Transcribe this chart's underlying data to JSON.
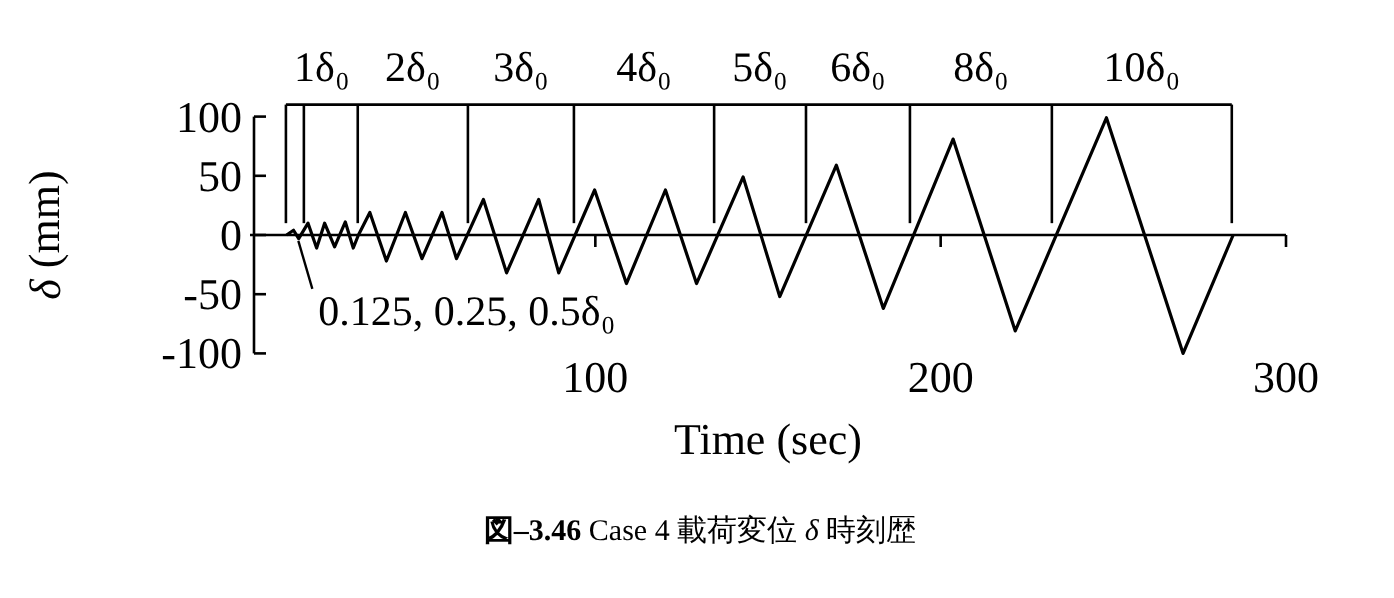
{
  "chart_data": {
    "type": "line",
    "title": "**図–3.46** Case 4 載荷変位 *δ* 時刻歴",
    "xlabel": "Time (sec)",
    "ylabel": "*δ* (mm)",
    "x": [
      10.6,
      12.6,
      14.1,
      16.8,
      19.3,
      21.6,
      24.5,
      27.6,
      29.9,
      31.4,
      34.7,
      39.5,
      45,
      49.8,
      55.6,
      59.8,
      67.6,
      74.3,
      83.6,
      89.4,
      99.8,
      109,
      120.3,
      129.3,
      142.8,
      153.4,
      169.8,
      183.4,
      203.6,
      221.6,
      248,
      270.2,
      284.7
    ],
    "values": [
      0,
      4,
      -3,
      10,
      -11,
      10,
      -10,
      11,
      -11,
      0,
      19,
      -22,
      19,
      -20,
      19,
      -20,
      30,
      -32,
      30,
      -32,
      38,
      -41,
      38,
      -41,
      49,
      -52,
      59,
      -62,
      81,
      -81,
      99,
      -100,
      0
    ],
    "color": "#000000",
    "xlim": [
      0,
      300
    ],
    "xticks": [
      100,
      200,
      300
    ],
    "ylim": [
      -100,
      100
    ],
    "yticks": [
      -100,
      -50,
      0,
      50,
      100
    ],
    "ref_lines": [
      {
        "axis": "x",
        "value": 10.4,
        "label": "1δ₀"
      },
      {
        "axis": "x",
        "value": 15.6
      },
      {
        "axis": "x",
        "value": 31.2,
        "label": "2δ₀"
      },
      {
        "axis": "x",
        "value": 63.1,
        "label": "3δ₀"
      },
      {
        "axis": "x",
        "value": 93.8,
        "label": "4δ₀"
      },
      {
        "axis": "x",
        "value": 134.4,
        "label": "5δ₀"
      },
      {
        "axis": "x",
        "value": 161,
        "label": "6δ₀"
      },
      {
        "axis": "x",
        "value": 191.1,
        "label": "8δ₀"
      },
      {
        "axis": "x",
        "value": 232.2,
        "label": "10δ₀"
      },
      {
        "axis": "x",
        "value": 284.3
      }
    ],
    "annotations": [
      {
        "text": "0.125, 0.25, 0.5δ₀",
        "x": 14,
        "y": -5
      }
    ]
  }
}
